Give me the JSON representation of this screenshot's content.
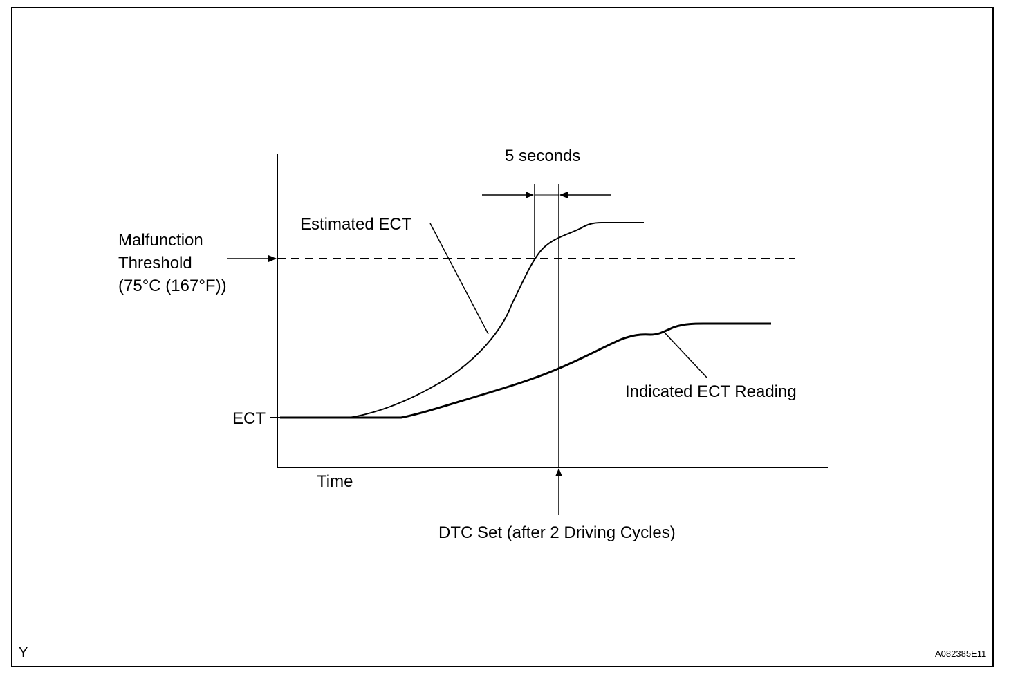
{
  "diagram": {
    "labels": {
      "five_seconds": "5 seconds",
      "estimated_ect": "Estimated ECT",
      "threshold_line1": "Malfunction",
      "threshold_line2": "Threshold",
      "threshold_line3": "(75°C (167°F))",
      "ect_axis": "ECT",
      "time_axis": "Time",
      "indicated_ect": "Indicated ECT Reading",
      "dtc_set": "DTC Set (after 2 Driving Cycles)"
    },
    "corner_code_left": "Y",
    "figure_id": "A082385E11"
  }
}
